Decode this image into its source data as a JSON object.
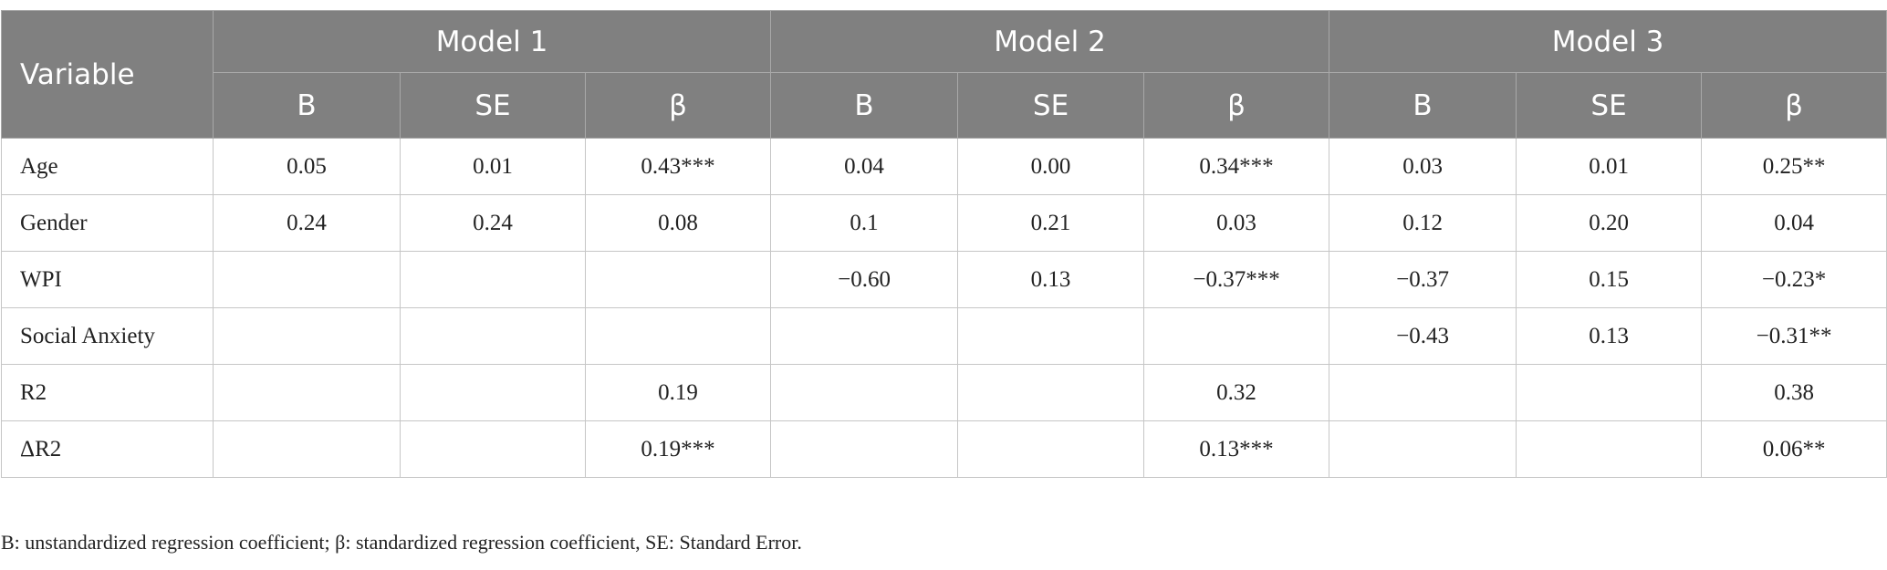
{
  "table": {
    "header": {
      "variable": "Variable",
      "models": [
        "Model 1",
        "Model 2",
        "Model 3"
      ],
      "subheaders": [
        "B",
        "SE",
        "β",
        "B",
        "SE",
        "β",
        "B",
        "SE",
        "β"
      ]
    },
    "rows": [
      {
        "label": "Age",
        "cells": [
          "0.05",
          "0.01",
          "0.43***",
          "0.04",
          "0.00",
          "0.34***",
          "0.03",
          "0.01",
          "0.25**"
        ]
      },
      {
        "label": "Gender",
        "cells": [
          "0.24",
          "0.24",
          "0.08",
          "0.1",
          "0.21",
          "0.03",
          "0.12",
          "0.20",
          "0.04"
        ]
      },
      {
        "label": "WPI",
        "cells": [
          null,
          null,
          null,
          "−0.60",
          "0.13",
          "−0.37***",
          "−0.37",
          "0.15",
          "−0.23*"
        ]
      },
      {
        "label": "Social Anxiety",
        "cells": [
          null,
          null,
          null,
          null,
          null,
          null,
          "−0.43",
          "0.13",
          "−0.31**"
        ]
      },
      {
        "label": "R2",
        "cells": [
          null,
          null,
          "0.19",
          null,
          null,
          "0.32",
          null,
          null,
          "0.38"
        ]
      },
      {
        "label": "ΔR2",
        "cells": [
          null,
          null,
          "0.19***",
          null,
          null,
          "0.13***",
          null,
          null,
          "0.06**"
        ]
      }
    ]
  },
  "footnote": "B: unstandardized regression coefficient; β: standardized regression coefficient, SE: Standard Error."
}
